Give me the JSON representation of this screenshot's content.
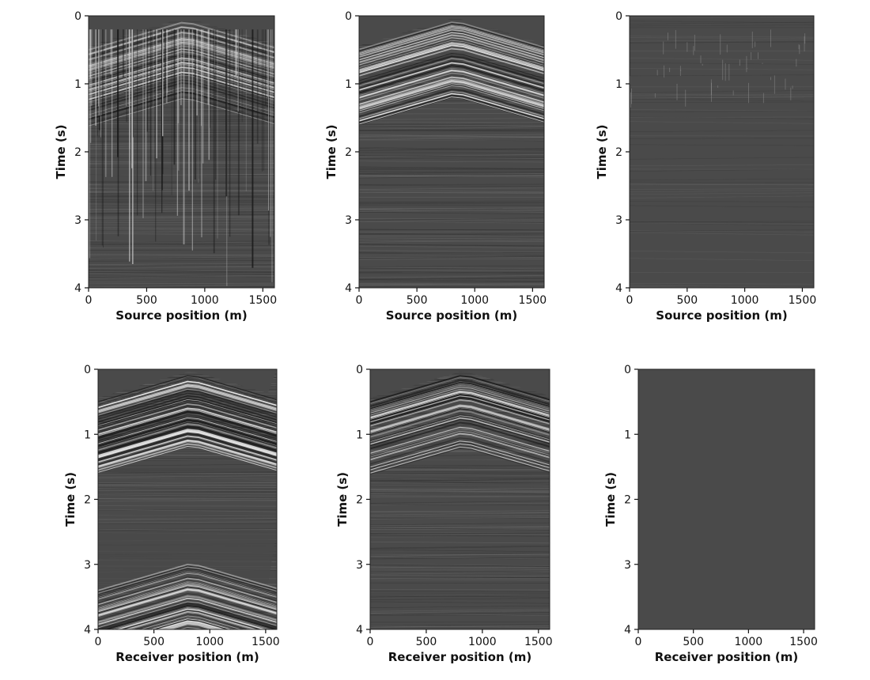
{
  "chart_data": [
    {
      "type": "heatmap",
      "panel": "top-left",
      "xlabel": "Source position (m)",
      "ylabel": "Time (s)",
      "xlim": [
        0,
        1600
      ],
      "ylim": [
        0,
        4
      ],
      "y_inverted": true,
      "x_ticks": [
        "0",
        "500",
        "1000",
        "1500"
      ],
      "y_ticks": [
        "0",
        "1",
        "2",
        "3",
        "4"
      ],
      "content": "noisy shot gather with vertical stripe noise",
      "colormap": "grayscale",
      "background_color": "#4a4a4a"
    },
    {
      "type": "heatmap",
      "panel": "top-middle",
      "xlabel": "Source position (m)",
      "ylabel": "Time (s)",
      "xlim": [
        0,
        1600
      ],
      "ylim": [
        0,
        4
      ],
      "y_inverted": true,
      "x_ticks": [
        "0",
        "500",
        "1000",
        "1500"
      ],
      "y_ticks": [
        "0",
        "1",
        "2",
        "3",
        "4"
      ],
      "content": "denoised gather with direct arrival apex near 800 m",
      "colormap": "grayscale",
      "background_color": "#4a4a4a"
    },
    {
      "type": "heatmap",
      "panel": "top-right",
      "xlabel": "Source position (m)",
      "ylabel": "Time (s)",
      "xlim": [
        0,
        1600
      ],
      "ylim": [
        0,
        4
      ],
      "y_inverted": true,
      "x_ticks": [
        "0",
        "500",
        "1000",
        "1500"
      ],
      "y_ticks": [
        "0",
        "1",
        "2",
        "3",
        "4"
      ],
      "content": "removed noise difference",
      "colormap": "grayscale",
      "background_color": "#4a4a4a"
    },
    {
      "type": "heatmap",
      "panel": "bottom-left",
      "xlabel": "Receiver position (m)",
      "ylabel": "Time (s)",
      "xlim": [
        0,
        1600
      ],
      "ylim": [
        0,
        4
      ],
      "y_inverted": true,
      "x_ticks": [
        "0",
        "500",
        "1000",
        "1500"
      ],
      "y_ticks": [
        "0",
        "1",
        "2",
        "3",
        "4"
      ],
      "content": "blended gather with second arrival apex near 3.0 s",
      "colormap": "grayscale",
      "background_color": "#4a4a4a"
    },
    {
      "type": "heatmap",
      "panel": "bottom-middle",
      "xlabel": "Receiver position (m)",
      "ylabel": "Time (s)",
      "xlim": [
        0,
        1600
      ],
      "ylim": [
        0,
        4
      ],
      "y_inverted": true,
      "x_ticks": [
        "0",
        "500",
        "1000",
        "1500"
      ],
      "y_ticks": [
        "0",
        "1",
        "2",
        "3",
        "4"
      ],
      "content": "deblended gather",
      "colormap": "grayscale",
      "background_color": "#4a4a4a"
    },
    {
      "type": "heatmap",
      "panel": "bottom-right",
      "xlabel": "Receiver position (m)",
      "ylabel": "Time (s)",
      "xlim": [
        0,
        1600
      ],
      "ylim": [
        0,
        4
      ],
      "y_inverted": true,
      "x_ticks": [
        "0",
        "500",
        "1000",
        "1500"
      ],
      "y_ticks": [
        "0",
        "1",
        "2",
        "3",
        "4"
      ],
      "content": "residual (near zero)",
      "colormap": "grayscale",
      "background_color": "#4a4a4a"
    }
  ]
}
